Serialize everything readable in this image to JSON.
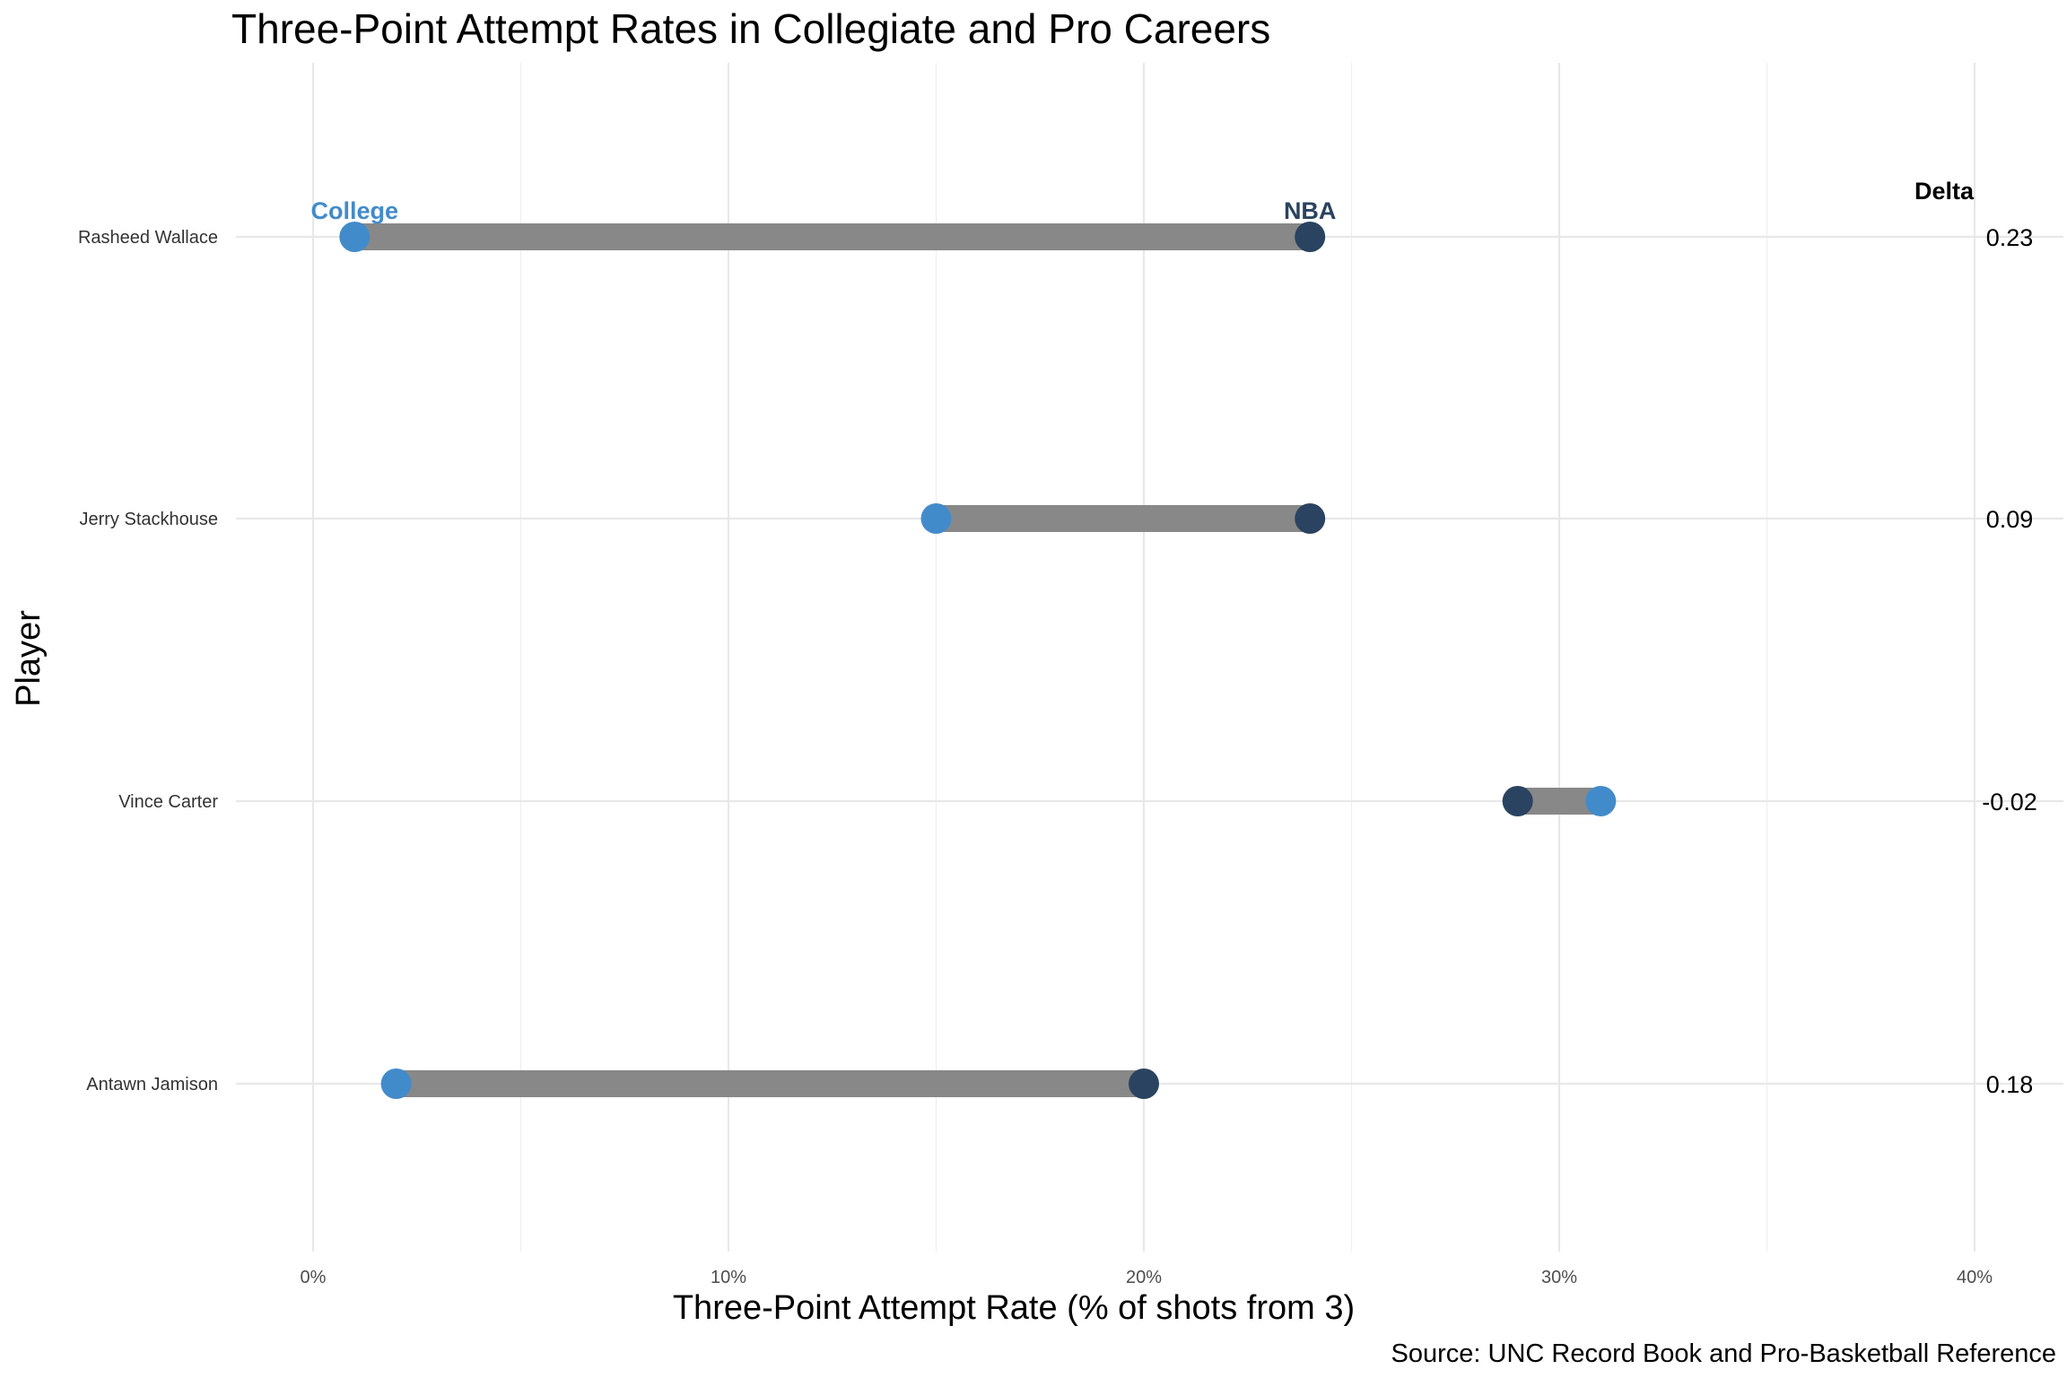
{
  "chart_data": {
    "type": "dumbbell",
    "title": "Three-Point Attempt Rates in Collegiate and Pro Careers",
    "xlabel": "Three-Point Attempt Rate (% of shots from 3)",
    "ylabel": "Player",
    "caption": "Source: UNC Record Book and Pro-Basketball Reference",
    "xlim": [
      0,
      0.4
    ],
    "x_ticks": [
      {
        "value": 0.0,
        "label": "0%"
      },
      {
        "value": 0.1,
        "label": "10%"
      },
      {
        "value": 0.2,
        "label": "20%"
      },
      {
        "value": 0.3,
        "label": "30%"
      },
      {
        "value": 0.4,
        "label": "40%"
      }
    ],
    "grid": true,
    "delta_header": "Delta",
    "legend_college": "College",
    "legend_nba": "NBA",
    "colors": {
      "college": "#428bca",
      "nba": "#2a4360",
      "segment": "#888888"
    },
    "players": [
      {
        "name": "Rasheed Wallace",
        "college": 0.01,
        "nba": 0.24,
        "delta": "0.23"
      },
      {
        "name": "Jerry Stackhouse",
        "college": 0.15,
        "nba": 0.24,
        "delta": "0.09"
      },
      {
        "name": "Vince Carter",
        "college": 0.31,
        "nba": 0.29,
        "delta": "-0.02"
      },
      {
        "name": "Antawn Jamison",
        "college": 0.02,
        "nba": 0.2,
        "delta": "0.18"
      }
    ]
  }
}
